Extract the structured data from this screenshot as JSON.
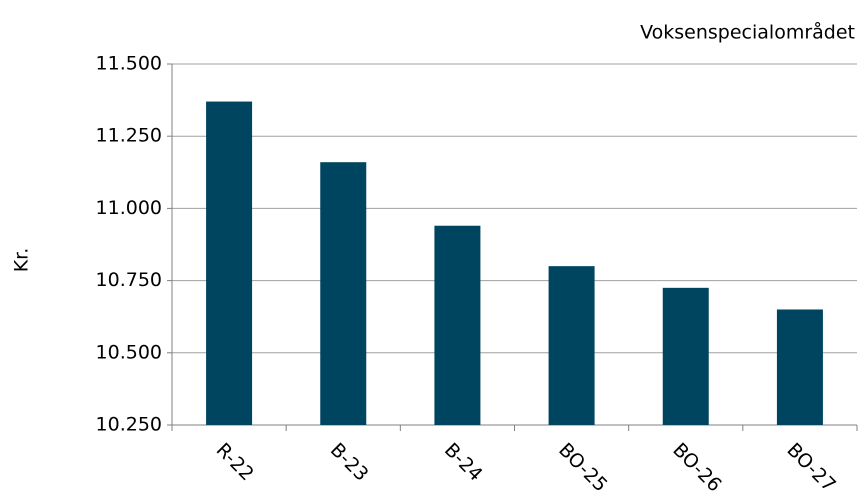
{
  "chart_data": {
    "type": "bar",
    "title": "Voksenspecialområdet",
    "y_label": "Kr.",
    "categories": [
      "R-22",
      "B-23",
      "B-24",
      "BO-25",
      "BO-26",
      "BO-27"
    ],
    "values": [
      11370,
      11160,
      10940,
      10800,
      10725,
      10650
    ],
    "color": "#004560",
    "ylim": [
      10250,
      11500
    ],
    "yticks": [
      {
        "value": 10250,
        "label": "10.250"
      },
      {
        "value": 10500,
        "label": "10.500"
      },
      {
        "value": 10750,
        "label": "10.750"
      },
      {
        "value": 11000,
        "label": "11.000"
      },
      {
        "value": 11250,
        "label": "11.250"
      },
      {
        "value": 11500,
        "label": "11.500"
      }
    ],
    "grid": true
  }
}
